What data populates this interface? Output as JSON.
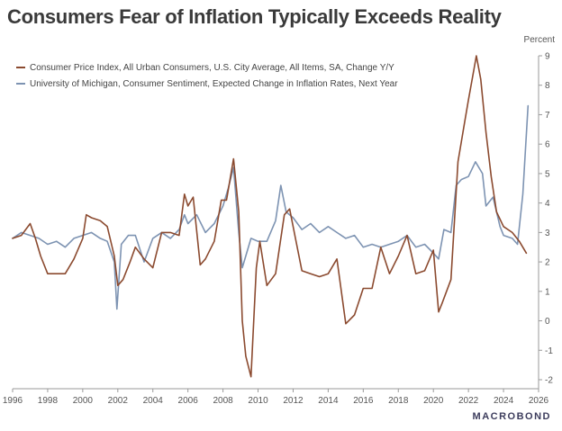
{
  "colors": {
    "cpi": "#8b4a2f",
    "umich": "#7d93b2",
    "axis": "#9a9a9a",
    "title": "#3a3a3a"
  },
  "chart_data": {
    "type": "line",
    "title": "Consumers Fear of Inflation Typically Exceeds Reality",
    "ylabel": "Percent",
    "xlim": [
      1996,
      2026
    ],
    "ylim": [
      -2,
      9
    ],
    "x_ticks": [
      "1996",
      "1998",
      "2000",
      "2002",
      "2004",
      "2006",
      "2008",
      "2010",
      "2012",
      "2014",
      "2016",
      "2018",
      "2020",
      "2022",
      "2024",
      "2026"
    ],
    "y_ticks": [
      "-2",
      "-1",
      "0",
      "1",
      "2",
      "3",
      "4",
      "5",
      "6",
      "7",
      "8",
      "9"
    ],
    "grid": false,
    "legend_position": "top-left",
    "series": [
      {
        "name": "Consumer Price Index, All Urban Consumers, U.S. City Average, All Items, SA, Change Y/Y",
        "x": [
          1996.0,
          1996.5,
          1997.0,
          1997.3,
          1997.6,
          1998.0,
          1998.5,
          1999.0,
          1999.5,
          2000.0,
          2000.2,
          2000.5,
          2001.0,
          2001.4,
          2001.8,
          2002.0,
          2002.3,
          2002.7,
          2003.0,
          2003.5,
          2004.0,
          2004.5,
          2005.0,
          2005.5,
          2005.8,
          2006.0,
          2006.3,
          2006.7,
          2007.0,
          2007.5,
          2007.9,
          2008.2,
          2008.6,
          2008.9,
          2009.1,
          2009.3,
          2009.6,
          2009.9,
          2010.1,
          2010.5,
          2011.0,
          2011.5,
          2011.8,
          2012.1,
          2012.5,
          2013.0,
          2013.5,
          2014.0,
          2014.5,
          2015.0,
          2015.5,
          2016.0,
          2016.5,
          2017.0,
          2017.5,
          2018.0,
          2018.5,
          2019.0,
          2019.5,
          2020.0,
          2020.3,
          2020.5,
          2021.0,
          2021.4,
          2021.8,
          2022.0,
          2022.3,
          2022.45,
          2022.7,
          2023.0,
          2023.3,
          2023.6,
          2024.0,
          2024.5,
          2024.9,
          2025.3
        ],
        "values": [
          2.8,
          2.9,
          3.3,
          2.8,
          2.2,
          1.6,
          1.6,
          1.6,
          2.1,
          2.8,
          3.6,
          3.5,
          3.4,
          3.2,
          2.2,
          1.2,
          1.4,
          2.0,
          2.5,
          2.1,
          1.8,
          3.0,
          3.0,
          2.9,
          4.3,
          3.9,
          4.2,
          1.9,
          2.1,
          2.7,
          4.1,
          4.1,
          5.5,
          3.7,
          0.0,
          -1.2,
          -1.9,
          1.8,
          2.7,
          1.2,
          1.6,
          3.6,
          3.8,
          2.9,
          1.7,
          1.6,
          1.5,
          1.6,
          2.1,
          -0.1,
          0.2,
          1.1,
          1.1,
          2.5,
          1.6,
          2.2,
          2.9,
          1.6,
          1.7,
          2.4,
          0.3,
          0.6,
          1.4,
          5.4,
          6.8,
          7.5,
          8.5,
          9.0,
          8.2,
          6.4,
          4.9,
          3.7,
          3.2,
          3.0,
          2.7,
          2.3
        ]
      },
      {
        "name": "University of Michigan, Consumer Sentiment, Expected Change in Inflation Rates, Next Year",
        "x": [
          1996.0,
          1996.5,
          1997.0,
          1997.5,
          1998.0,
          1998.5,
          1999.0,
          1999.5,
          2000.0,
          2000.5,
          2001.0,
          2001.4,
          2001.8,
          2001.95,
          2002.2,
          2002.6,
          2003.0,
          2003.5,
          2004.0,
          2004.5,
          2005.0,
          2005.5,
          2005.8,
          2006.0,
          2006.5,
          2007.0,
          2007.5,
          2008.0,
          2008.3,
          2008.6,
          2008.9,
          2009.1,
          2009.3,
          2009.6,
          2010.0,
          2010.5,
          2011.0,
          2011.3,
          2011.6,
          2012.0,
          2012.5,
          2013.0,
          2013.5,
          2014.0,
          2014.5,
          2015.0,
          2015.5,
          2016.0,
          2016.5,
          2017.0,
          2017.5,
          2018.0,
          2018.5,
          2019.0,
          2019.5,
          2020.0,
          2020.3,
          2020.6,
          2021.0,
          2021.3,
          2021.6,
          2022.0,
          2022.4,
          2022.8,
          2023.0,
          2023.4,
          2023.8,
          2024.0,
          2024.5,
          2024.8,
          2025.1,
          2025.4
        ],
        "values": [
          2.8,
          3.0,
          2.9,
          2.8,
          2.6,
          2.7,
          2.5,
          2.8,
          2.9,
          3.0,
          2.8,
          2.7,
          2.0,
          0.4,
          2.6,
          2.9,
          2.9,
          2.0,
          2.8,
          3.0,
          2.8,
          3.1,
          3.6,
          3.3,
          3.6,
          3.0,
          3.3,
          3.9,
          4.5,
          5.2,
          3.0,
          1.8,
          2.2,
          2.8,
          2.7,
          2.7,
          3.4,
          4.6,
          3.7,
          3.5,
          3.1,
          3.3,
          3.0,
          3.2,
          3.0,
          2.8,
          2.9,
          2.5,
          2.6,
          2.5,
          2.6,
          2.7,
          2.9,
          2.5,
          2.6,
          2.3,
          2.1,
          3.1,
          3.0,
          4.6,
          4.8,
          4.9,
          5.4,
          5.0,
          3.9,
          4.2,
          3.2,
          2.9,
          2.8,
          2.6,
          4.3,
          7.3
        ]
      }
    ]
  },
  "brand": {
    "name": "MACROBOND"
  }
}
